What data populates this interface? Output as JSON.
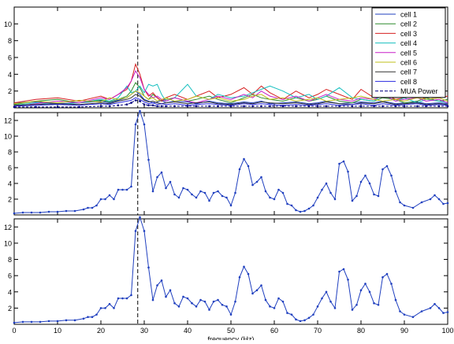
{
  "chart_data": [
    {
      "type": "line",
      "title": "",
      "xlabel": "",
      "ylabel": "",
      "xlim": [
        0,
        100
      ],
      "ylim": [
        0,
        12
      ],
      "xticks": [],
      "yticks": [
        2,
        4,
        6,
        8,
        10
      ],
      "grid": false,
      "legend_position": "top-right",
      "vline": {
        "x": 28.5,
        "y_top": 10,
        "style": "dashed"
      },
      "x": [
        0,
        5,
        10,
        15,
        20,
        22,
        24,
        26,
        27,
        28,
        29,
        30,
        31,
        32,
        33,
        34,
        35,
        37,
        40,
        42,
        45,
        47,
        50,
        53,
        55,
        57,
        59,
        62,
        65,
        68,
        70,
        72,
        75,
        78,
        80,
        83,
        85,
        88,
        90,
        93,
        95,
        98,
        100
      ],
      "series": [
        {
          "name": "cell 1",
          "color": "#1f3fbf",
          "values": [
            0.6,
            0.7,
            0.5,
            0.6,
            0.8,
            0.6,
            0.9,
            1.2,
            1.6,
            2.0,
            1.6,
            1.0,
            0.8,
            0.6,
            0.7,
            0.9,
            0.6,
            0.8,
            0.7,
            0.5,
            0.8,
            0.6,
            0.5,
            0.7,
            0.6,
            0.8,
            0.5,
            0.6,
            0.7,
            0.5,
            0.6,
            0.8,
            0.5,
            0.6,
            0.7,
            0.6,
            0.8,
            0.5,
            0.6,
            0.7,
            0.5,
            0.6,
            0.5
          ]
        },
        {
          "name": "cell 2",
          "color": "#2e8b2e",
          "values": [
            0.4,
            0.8,
            1.0,
            0.6,
            0.9,
            0.7,
            1.0,
            1.4,
            2.0,
            3.0,
            2.4,
            1.4,
            1.0,
            1.6,
            1.2,
            0.8,
            1.0,
            1.2,
            0.8,
            1.0,
            1.4,
            1.0,
            0.6,
            1.2,
            1.6,
            1.2,
            1.0,
            0.8,
            1.2,
            0.8,
            1.0,
            1.4,
            0.8,
            0.6,
            1.0,
            0.8,
            1.2,
            1.0,
            0.6,
            0.8,
            1.2,
            0.8,
            1.0
          ]
        },
        {
          "name": "cell 3",
          "color": "#d62020",
          "values": [
            0.6,
            1.0,
            1.2,
            0.8,
            1.4,
            1.0,
            1.6,
            2.2,
            3.2,
            5.2,
            4.0,
            2.2,
            1.4,
            1.8,
            1.2,
            0.8,
            1.2,
            1.6,
            1.0,
            1.4,
            2.0,
            1.2,
            1.6,
            2.4,
            1.6,
            2.6,
            1.8,
            1.0,
            2.0,
            1.2,
            1.6,
            2.2,
            1.6,
            1.0,
            2.2,
            1.2,
            1.8,
            1.0,
            1.2,
            1.6,
            1.0,
            1.2,
            1.4
          ]
        },
        {
          "name": "cell 4",
          "color": "#14bfbf",
          "values": [
            0.3,
            0.6,
            0.4,
            0.6,
            1.0,
            0.8,
            1.2,
            2.6,
            1.8,
            2.0,
            2.6,
            1.8,
            2.8,
            2.6,
            2.8,
            1.6,
            0.8,
            1.2,
            2.8,
            1.4,
            1.0,
            1.6,
            1.2,
            1.4,
            1.8,
            2.2,
            2.6,
            2.0,
            1.2,
            1.6,
            1.0,
            1.4,
            2.4,
            1.2,
            1.0,
            0.8,
            1.6,
            0.8,
            1.2,
            0.6,
            1.0,
            0.8,
            0.6
          ]
        },
        {
          "name": "cell 5",
          "color": "#c81fc8",
          "values": [
            0.2,
            0.5,
            0.8,
            0.6,
            1.2,
            1.0,
            1.6,
            2.4,
            3.2,
            4.4,
            3.6,
            2.2,
            1.6,
            1.2,
            1.4,
            1.0,
            0.8,
            1.2,
            0.8,
            0.6,
            1.0,
            1.4,
            1.0,
            1.6,
            1.2,
            2.0,
            1.4,
            1.0,
            1.4,
            0.8,
            1.2,
            1.6,
            1.0,
            0.8,
            1.2,
            1.0,
            1.6,
            0.8,
            1.0,
            1.2,
            0.8,
            1.0,
            0.6
          ]
        },
        {
          "name": "cell 6",
          "color": "#bfbf1a",
          "values": [
            0.5,
            0.8,
            0.6,
            0.9,
            0.7,
            1.2,
            1.0,
            1.2,
            1.6,
            2.0,
            1.8,
            1.4,
            1.0,
            1.2,
            0.8,
            1.0,
            1.2,
            0.8,
            1.0,
            1.4,
            1.0,
            1.2,
            0.8,
            1.0,
            1.4,
            1.6,
            1.0,
            1.2,
            0.8,
            1.0,
            1.2,
            0.8,
            1.0,
            1.2,
            1.4,
            1.0,
            0.8,
            1.0,
            0.8,
            1.2,
            1.0,
            1.2,
            0.8
          ]
        },
        {
          "name": "cell 7",
          "color": "#333333",
          "values": [
            0.3,
            0.4,
            0.5,
            0.4,
            0.6,
            0.5,
            0.8,
            1.0,
            1.2,
            1.6,
            1.4,
            0.9,
            0.7,
            0.8,
            0.6,
            0.5,
            0.6,
            0.7,
            0.5,
            0.6,
            0.7,
            0.5,
            0.4,
            0.6,
            0.5,
            0.7,
            0.6,
            0.5,
            0.6,
            0.4,
            0.5,
            0.7,
            0.5,
            0.4,
            0.6,
            0.5,
            0.7,
            0.4,
            0.5,
            0.6,
            0.4,
            0.5,
            0.4
          ]
        },
        {
          "name": "cell 8",
          "color": "#2a2ae0",
          "values": [
            0.2,
            0.3,
            0.4,
            0.3,
            0.5,
            0.4,
            0.6,
            0.8,
            0.9,
            1.2,
            1.0,
            0.7,
            0.5,
            0.6,
            0.4,
            0.5,
            0.4,
            0.5,
            0.3,
            0.4,
            0.5,
            0.4,
            0.3,
            0.5,
            0.4,
            0.5,
            0.4,
            0.3,
            0.4,
            0.3,
            0.4,
            0.5,
            0.3,
            0.4,
            0.5,
            0.3,
            0.5,
            0.3,
            0.4,
            0.5,
            0.3,
            0.4,
            0.3
          ]
        },
        {
          "name": "MUA Power",
          "color": "#000080",
          "dashed": true,
          "values": [
            0.1,
            0.1,
            0.1,
            0.1,
            0.2,
            0.2,
            0.3,
            0.4,
            0.6,
            0.9,
            0.8,
            0.4,
            0.3,
            0.3,
            0.2,
            0.2,
            0.2,
            0.2,
            0.2,
            0.2,
            0.2,
            0.2,
            0.2,
            0.2,
            0.2,
            0.2,
            0.2,
            0.2,
            0.2,
            0.2,
            0.2,
            0.2,
            0.2,
            0.2,
            0.2,
            0.2,
            0.2,
            0.2,
            0.2,
            0.2,
            0.2,
            0.2,
            0.2
          ]
        }
      ]
    },
    {
      "type": "line",
      "title": "",
      "xlabel": "",
      "ylabel": "",
      "xlim": [
        0,
        100
      ],
      "ylim": [
        0,
        13
      ],
      "xticks": [],
      "yticks": [
        2,
        4,
        6,
        8,
        10,
        12
      ],
      "grid": false,
      "vline": {
        "x": 28.5,
        "y_top": 13,
        "style": "dashed"
      },
      "x": [
        0,
        2,
        4,
        6,
        8,
        10,
        12,
        14,
        16,
        17,
        18,
        19,
        20,
        21,
        22,
        23,
        24,
        25,
        26,
        27,
        28,
        29,
        30,
        31,
        32,
        33,
        34,
        35,
        36,
        37,
        38,
        39,
        40,
        41,
        42,
        43,
        44,
        45,
        46,
        47,
        48,
        49,
        50,
        51,
        52,
        53,
        54,
        55,
        56,
        57,
        58,
        59,
        60,
        61,
        62,
        63,
        64,
        65,
        66,
        67,
        68,
        69,
        70,
        71,
        72,
        73,
        74,
        75,
        76,
        77,
        78,
        79,
        80,
        81,
        82,
        83,
        84,
        85,
        86,
        87,
        88,
        89,
        90,
        92,
        94,
        96,
        97,
        98,
        99,
        100
      ],
      "series": [
        {
          "name": "",
          "color": "#1f3fbf",
          "values": [
            0.2,
            0.3,
            0.3,
            0.3,
            0.4,
            0.4,
            0.5,
            0.5,
            0.7,
            0.9,
            0.9,
            1.2,
            2.0,
            2.0,
            2.5,
            2.0,
            3.2,
            3.2,
            3.2,
            3.6,
            11.5,
            13.2,
            11.5,
            7.0,
            3.0,
            4.8,
            5.4,
            3.4,
            4.2,
            2.6,
            2.2,
            3.4,
            3.2,
            2.6,
            2.2,
            3.0,
            2.8,
            1.8,
            2.8,
            3.0,
            2.4,
            2.2,
            1.2,
            2.8,
            5.8,
            7.1,
            6.2,
            3.8,
            4.2,
            4.8,
            3.0,
            2.2,
            2.0,
            3.2,
            2.8,
            1.4,
            1.2,
            0.6,
            0.4,
            0.5,
            0.8,
            1.2,
            2.2,
            3.2,
            4.0,
            2.8,
            2.0,
            6.5,
            6.8,
            5.5,
            1.8,
            2.4,
            4.2,
            5.0,
            4.0,
            2.6,
            2.4,
            5.8,
            6.2,
            5.0,
            3.0,
            1.6,
            1.2,
            0.9,
            1.6,
            2.0,
            2.5,
            2.0,
            1.4,
            1.5
          ]
        }
      ]
    },
    {
      "type": "line",
      "title": "",
      "xlabel": "frequency (Hz)",
      "ylabel": "",
      "xlim": [
        0,
        100
      ],
      "ylim": [
        0,
        13
      ],
      "xticks": [
        0,
        10,
        20,
        30,
        40,
        50,
        60,
        70,
        80,
        90,
        100
      ],
      "yticks": [
        2,
        4,
        6,
        8,
        10,
        12
      ],
      "grid": false,
      "vline": {
        "x": 28.5,
        "y_top": 13,
        "style": "dashed"
      },
      "x": [
        0,
        2,
        4,
        6,
        8,
        10,
        12,
        14,
        16,
        17,
        18,
        19,
        20,
        21,
        22,
        23,
        24,
        25,
        26,
        27,
        28,
        29,
        30,
        31,
        32,
        33,
        34,
        35,
        36,
        37,
        38,
        39,
        40,
        41,
        42,
        43,
        44,
        45,
        46,
        47,
        48,
        49,
        50,
        51,
        52,
        53,
        54,
        55,
        56,
        57,
        58,
        59,
        60,
        61,
        62,
        63,
        64,
        65,
        66,
        67,
        68,
        69,
        70,
        71,
        72,
        73,
        74,
        75,
        76,
        77,
        78,
        79,
        80,
        81,
        82,
        83,
        84,
        85,
        86,
        87,
        88,
        89,
        90,
        92,
        94,
        96,
        97,
        98,
        99,
        100
      ],
      "series": [
        {
          "name": "",
          "color": "#1f3fbf",
          "values": [
            0.2,
            0.3,
            0.3,
            0.3,
            0.4,
            0.4,
            0.5,
            0.5,
            0.7,
            0.9,
            0.9,
            1.2,
            2.0,
            2.0,
            2.5,
            2.0,
            3.2,
            3.2,
            3.2,
            3.6,
            11.5,
            13.2,
            11.5,
            7.0,
            3.0,
            4.8,
            5.4,
            3.4,
            4.2,
            2.6,
            2.2,
            3.4,
            3.2,
            2.6,
            2.2,
            3.0,
            2.8,
            1.8,
            2.8,
            3.0,
            2.4,
            2.2,
            1.2,
            2.8,
            5.8,
            7.1,
            6.2,
            3.8,
            4.2,
            4.8,
            3.0,
            2.2,
            2.0,
            3.2,
            2.8,
            1.4,
            1.2,
            0.6,
            0.4,
            0.5,
            0.8,
            1.2,
            2.2,
            3.2,
            4.0,
            2.8,
            2.0,
            6.5,
            6.8,
            5.5,
            1.8,
            2.4,
            4.2,
            5.0,
            4.0,
            2.6,
            2.4,
            5.8,
            6.2,
            5.0,
            3.0,
            1.6,
            1.2,
            0.9,
            1.6,
            2.0,
            2.5,
            2.0,
            1.4,
            1.5
          ]
        }
      ]
    }
  ]
}
